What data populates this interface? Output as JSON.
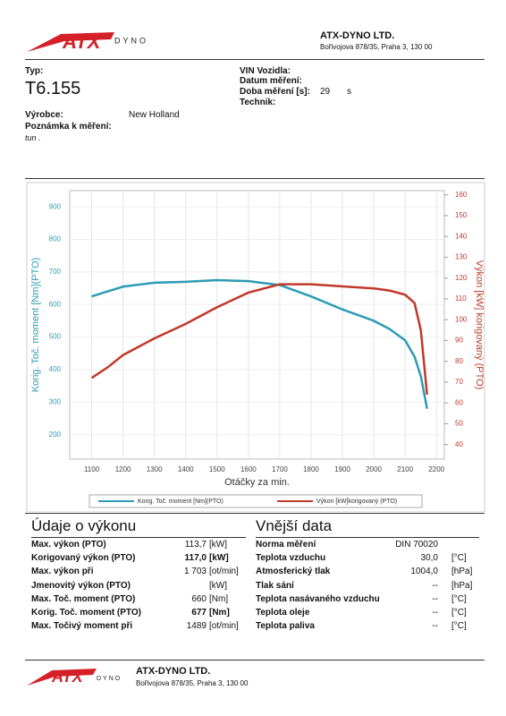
{
  "header": {
    "logo": "ATX",
    "logo_sub": "DYNO",
    "company": "ATX-DYNO LTD.",
    "address": "Bořivojova 878/35, Praha 3, 130 00"
  },
  "info": {
    "type_label": "Typ:",
    "type": "T6.155",
    "vin_label": "VIN Vozidla:",
    "date_label": "Datum měření:",
    "duration_label": "Doba měření [s]:",
    "duration": "29",
    "duration_unit": "s",
    "technician_label": "Technik:",
    "maker_label": "Výrobce:",
    "maker": "New Holland",
    "note_label": "Poznámka k měření:",
    "note": "tun ."
  },
  "chart_data": {
    "type": "line",
    "x_label": "Otáčky za min.",
    "y_label": "Korig. Toč. moment [Nm](PTO)",
    "y2_label": "Výkon [kW] korigovaný (PTO)",
    "x": [
      1100,
      1150,
      1200,
      1300,
      1400,
      1500,
      1600,
      1700,
      1800,
      1900,
      2000,
      2050,
      2100,
      2130,
      2150,
      2170
    ],
    "series": [
      {
        "name": "Korig. Toč. moment [Nm](PTO)",
        "color": "#2e9bb5",
        "values": [
          625,
          640,
          655,
          667,
          670,
          675,
          672,
          660,
          625,
          585,
          550,
          525,
          490,
          440,
          380,
          280
        ]
      },
      {
        "name": "Výkon [kW]korigovaný (PTO)",
        "color": "#c0392b",
        "axis": "y2",
        "values": [
          72,
          77,
          83,
          91,
          98,
          106,
          113,
          117,
          117,
          116,
          115,
          114,
          112,
          108,
          95,
          64
        ]
      }
    ],
    "xlim": [
      1030,
      2225
    ],
    "xticks": [
      1100,
      1200,
      1300,
      1400,
      1500,
      1600,
      1700,
      1800,
      1900,
      2000,
      2100,
      2200
    ],
    "ylim": [
      125,
      950
    ],
    "yticks": [
      200,
      300,
      400,
      500,
      600,
      700,
      800,
      900
    ],
    "y2lim": [
      33,
      162
    ],
    "y2ticks": [
      40,
      50,
      60,
      70,
      80,
      90,
      100,
      110,
      120,
      130,
      140,
      150,
      160
    ],
    "grid": true
  },
  "performance": {
    "title": "Údaje o výkonu",
    "rows": [
      {
        "label": "Max. výkon (PTO)",
        "value": "113,7",
        "unit": "[kW]"
      },
      {
        "label": "Korigovaný výkon (PTO)",
        "value": "117,0",
        "unit": "[kW]",
        "bold": true
      },
      {
        "label": "Max. výkon při",
        "value": "1 703",
        "unit": "[ot/min]"
      },
      {
        "label": "Jmenovitý výkon (PTO)",
        "unit": "[kW]"
      },
      {
        "label": "Max. Toč. moment (PTO)",
        "value": "660",
        "unit": "[Nm]"
      },
      {
        "label": "Korig. Toč. moment (PTO)",
        "value": "677",
        "unit": "[Nm]",
        "bold": true
      },
      {
        "label": "Max. Točivý moment při",
        "value": "1489",
        "unit": "[ot/min]"
      }
    ]
  },
  "external": {
    "title": "Vnější data",
    "rows": [
      {
        "label": "Norma měření",
        "value": "DIN 70020"
      },
      {
        "label": "Teplota vzduchu",
        "value": "30,0",
        "unit": "[°C]"
      },
      {
        "label": "Atmosferický tlak",
        "value": "1004,0",
        "unit": "[hPa]"
      },
      {
        "label": "Tlak sání",
        "value": "--",
        "unit": "[hPa]"
      },
      {
        "label": "Teplota nasávaného vzduchu",
        "value": "--",
        "unit": "[°C]"
      },
      {
        "label": "Teplota oleje",
        "value": "--",
        "unit": "[°C]"
      },
      {
        "label": "Teplota paliva",
        "value": "--",
        "unit": "[°C]"
      }
    ]
  }
}
